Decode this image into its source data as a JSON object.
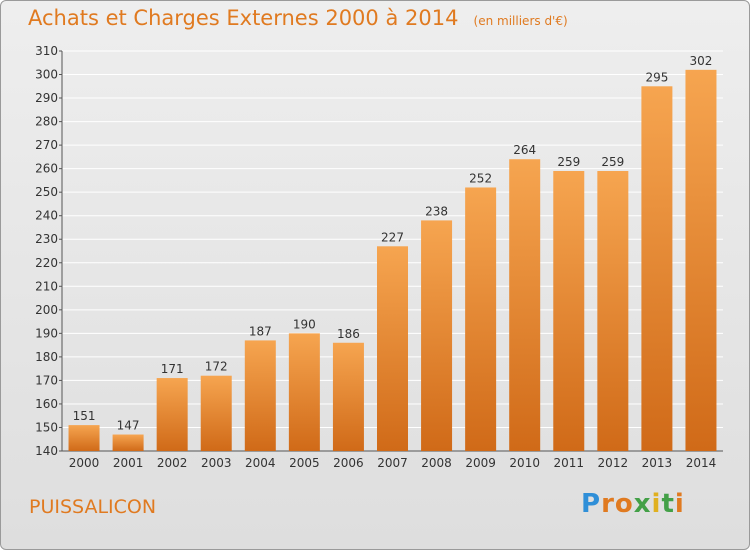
{
  "header": {
    "title": "Achats et Charges Externes 2000 à 2014",
    "unit": "(en milliers d'€)"
  },
  "footer": {
    "location": "PUISSALICON",
    "brand": "Proxiti"
  },
  "colors": {
    "bar_light": "#f6a550",
    "bar_dark": "#d06a18",
    "title": "#e07a20",
    "grid": "#ffffff",
    "logo": [
      "#2f8fd8",
      "#e07a20",
      "#e07a20",
      "#43a047",
      "#e0b020",
      "#43a047",
      "#e07a20"
    ]
  },
  "chart_data": {
    "type": "bar",
    "categories": [
      "2000",
      "2001",
      "2002",
      "2003",
      "2004",
      "2005",
      "2006",
      "2007",
      "2008",
      "2009",
      "2010",
      "2011",
      "2012",
      "2013",
      "2014"
    ],
    "values": [
      151,
      147,
      171,
      172,
      187,
      190,
      186,
      227,
      238,
      252,
      264,
      259,
      259,
      295,
      302
    ],
    "ylim": [
      140,
      310
    ],
    "yticks": [
      140,
      150,
      160,
      170,
      180,
      190,
      200,
      210,
      220,
      230,
      240,
      250,
      260,
      270,
      280,
      290,
      300,
      310
    ],
    "grid": true,
    "data_labels": true
  }
}
